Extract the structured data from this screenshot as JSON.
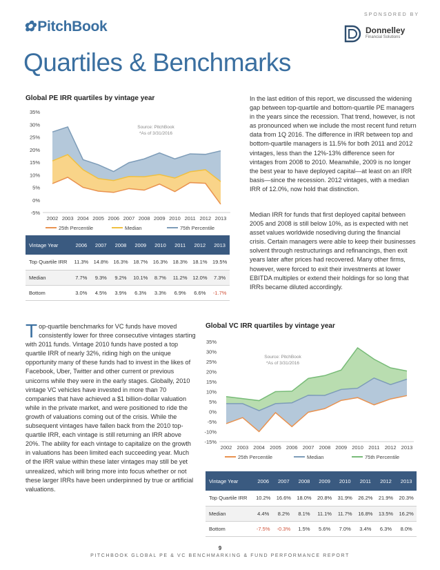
{
  "header": {
    "logo_text": "PitchBook",
    "sponsor_label": "SPONSORED BY",
    "sponsor_name": "Donnelley",
    "sponsor_sub": "Financial Solutions"
  },
  "page_title": "Quartiles & Benchmarks",
  "pe_chart": {
    "title": "Global PE IRR quartiles by vintage year",
    "source": "Source: PitchBook",
    "asof": "*As of 3/31/2016",
    "legend": [
      "25th Percentile",
      "Median",
      "75th Percentile"
    ]
  },
  "vc_chart": {
    "title": "Global VC IRR quartiles by vintage year",
    "source": "Source: PitchBook",
    "asof": "*As of 3/31/2016",
    "legend": [
      "25th Percentile",
      "Median",
      "75th Percentile"
    ]
  },
  "chart_data": [
    {
      "type": "area",
      "title": "Global PE IRR quartiles by vintage year",
      "x": [
        "2002",
        "2003",
        "2004",
        "2005",
        "2006",
        "2007",
        "2008",
        "2009",
        "2010",
        "2011",
        "2012",
        "2013"
      ],
      "y_ticks": [
        "35%",
        "30%",
        "25%",
        "20%",
        "15%",
        "10%",
        "5%",
        "0%",
        "-5%"
      ],
      "ylim": [
        -5,
        35
      ],
      "series": [
        {
          "name": "25th Percentile",
          "values": [
            6.5,
            9.0,
            5.0,
            3.5,
            3.0,
            4.5,
            3.9,
            6.3,
            3.3,
            6.9,
            6.6,
            -1.7
          ]
        },
        {
          "name": "Median",
          "values": [
            15.5,
            18.0,
            12.0,
            8.5,
            7.7,
            9.3,
            9.2,
            10.1,
            8.7,
            11.2,
            12.0,
            7.3
          ]
        },
        {
          "name": "75th Percentile",
          "values": [
            27.0,
            29.0,
            16.0,
            14.0,
            11.3,
            14.8,
            16.3,
            18.7,
            16.3,
            18.3,
            18.1,
            19.5
          ]
        }
      ],
      "colors": {
        "bottom": "#e9924f",
        "middle": "#f9d489",
        "top": "#b4c8da",
        "median_line": "#f0c040",
        "top_line": "#7d9cb8"
      }
    },
    {
      "type": "area",
      "title": "Global VC IRR quartiles by vintage year",
      "x": [
        "2002",
        "2003",
        "2004",
        "2005",
        "2006",
        "2007",
        "2008",
        "2009",
        "2010",
        "2011",
        "2012",
        "2013"
      ],
      "y_ticks": [
        "35%",
        "30%",
        "25%",
        "20%",
        "15%",
        "10%",
        "5%",
        "0%",
        "-5%",
        "-10%",
        "-15%"
      ],
      "ylim": [
        -15,
        35
      ],
      "series": [
        {
          "name": "25th Percentile",
          "values": [
            -6.0,
            -3.0,
            -10.0,
            -0.5,
            -7.5,
            -0.3,
            1.5,
            5.6,
            7.0,
            3.4,
            6.3,
            8.0
          ]
        },
        {
          "name": "Median",
          "values": [
            4.0,
            4.0,
            0.5,
            4.0,
            4.4,
            8.2,
            8.1,
            11.1,
            11.7,
            16.8,
            13.5,
            16.2
          ]
        },
        {
          "name": "75th Percentile",
          "values": [
            7.5,
            6.5,
            5.5,
            10.0,
            10.2,
            16.6,
            18.0,
            20.8,
            31.9,
            26.2,
            21.9,
            20.3
          ]
        }
      ],
      "colors": {
        "bottom": "#e9924f",
        "middle": "#b4c8da",
        "top": "#b9ddb0",
        "median_line": "#7d9cb8",
        "top_line": "#77bb77"
      }
    }
  ],
  "pe_table": {
    "header": [
      "Vintage Year",
      "2006",
      "2007",
      "2008",
      "2009",
      "2010",
      "2011",
      "2012",
      "2013"
    ],
    "rows": [
      [
        "Top Quartile IRR",
        "11.3%",
        "14.8%",
        "16.3%",
        "18.7%",
        "16.3%",
        "18.3%",
        "18.1%",
        "19.5%"
      ],
      [
        "Median",
        "7.7%",
        "9.3%",
        "9.2%",
        "10.1%",
        "8.7%",
        "11.2%",
        "12.0%",
        "7.3%"
      ],
      [
        "Bottom",
        "3.0%",
        "4.5%",
        "3.9%",
        "6.3%",
        "3.3%",
        "6.9%",
        "6.6%",
        "-1.7%"
      ]
    ]
  },
  "vc_table": {
    "header": [
      "Vintage Year",
      "2006",
      "2007",
      "2008",
      "2009",
      "2010",
      "2011",
      "2012",
      "2013"
    ],
    "rows": [
      [
        "Top Quartile IRR",
        "10.2%",
        "16.6%",
        "18.0%",
        "20.8%",
        "31.9%",
        "26.2%",
        "21.9%",
        "20.3%"
      ],
      [
        "Median",
        "4.4%",
        "8.2%",
        "8.1%",
        "11.1%",
        "11.7%",
        "16.8%",
        "13.5%",
        "16.2%"
      ],
      [
        "Bottom",
        "-7.5%",
        "-0.3%",
        "1.5%",
        "5.6%",
        "7.0%",
        "3.4%",
        "6.3%",
        "8.0%"
      ]
    ]
  },
  "text": {
    "right_para1": "In the last edition of this report, we discussed the widening gap between top-quartile and bottom-quartile PE managers in the years since the recession. That trend, however, is not as pronounced when we include the most recent fund return data from 1Q 2016. The difference in IRR between top and bottom-quartile managers is 11.5% for both 2011 and 2012 vintages, less than the 12%-13% difference seen for vintages from 2008 to 2010. Meanwhile, 2009 is no longer the best year to have deployed capital—at least on an IRR basis—since the recession. 2012 vintages, with a median IRR of 12.0%, now hold that distinction.",
    "right_para2": "Median IRR for funds that first deployed capital between 2005 and 2008 is still below 10%, as is expected with net asset values worldwide nosediving during the financial crisis. Certain managers were able to keep their businesses solvent through restructurings and refinancings, then exit years later after prices had recovered. Many other firms, however, were forced to exit their investments at lower EBITDA multiples or extend their holdings for so long that IRRs became diluted accordingly.",
    "left_dropcap": "T",
    "left_para": "op-quartile benchmarks for VC funds have moved consistently lower for three consecutive vintages starting with 2011 funds. Vintage 2010 funds have posted a top quartile IRR of nearly 32%, riding high on the unique opportunity many of these funds had to invest in the likes of Facebook, Uber, Twitter and other current or previous unicorns while they were in the early stages. Globally, 2010 vintage VC vehicles have invested in more than 70 companies that have achieved a $1 billion-dollar valuation while in the private market, and were positioned to ride the growth of valuations coming out of the crisis. While the subsequent vintages have fallen back from the 2010 top-quartile IRR, each vintage is still returning an IRR above 20%. The ability for each vintage to capitalize on the growth in valuations has been limited each succeeding year. Much of the IRR value within these later vintages may still be yet unrealized, which will bring more into focus whether or not these larger IRRs have been underpinned by true or artificial valuations."
  },
  "footer": {
    "page_number": "9",
    "report_title": "PITCHBOOK GLOBAL PE & VC BENCHMARKING & FUND PERFORMANCE REPORT"
  }
}
